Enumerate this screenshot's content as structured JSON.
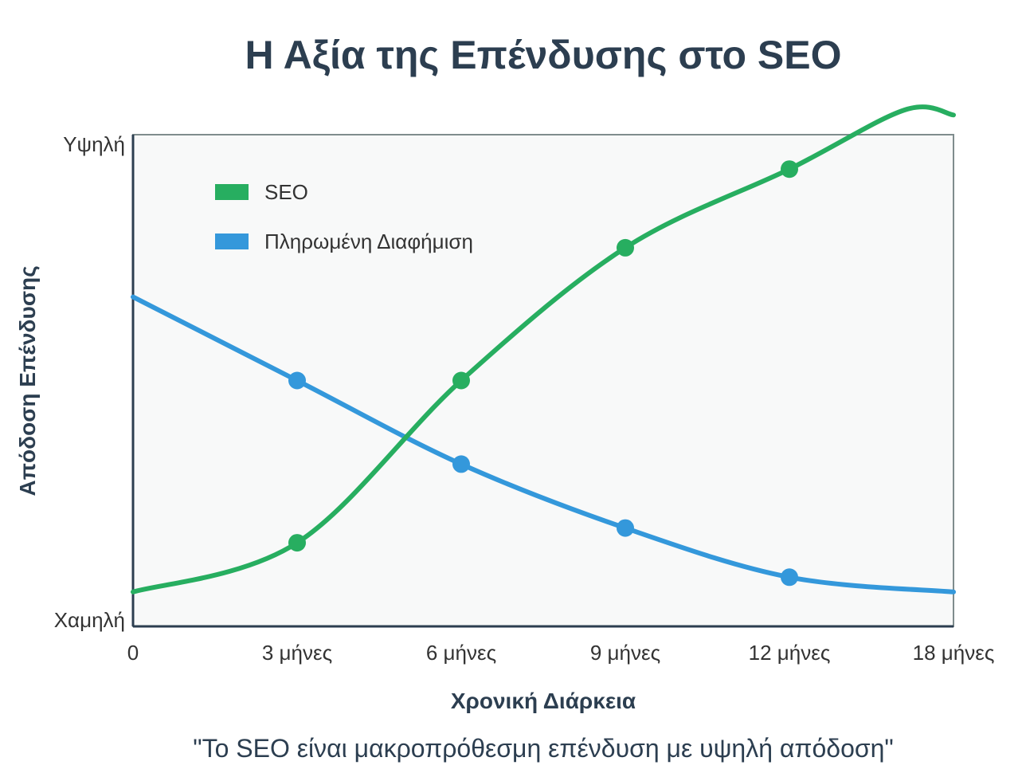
{
  "chart_data": {
    "type": "line",
    "title": "Η Αξία της Επένδυσης στο SEO",
    "xlabel": "Χρονική Διάρκεια",
    "ylabel": "Απόδοση Επένδυσης",
    "x_ticks": [
      "0",
      "3 μήνες",
      "6 μήνες",
      "9 μήνες",
      "12 μήνες",
      "18 μήνες"
    ],
    "y_ticks": [
      "Χαμηλή",
      "Υψηλή"
    ],
    "ylim": [
      0,
      100
    ],
    "grid": false,
    "legend_position": "top-left",
    "series": [
      {
        "name": "SEO",
        "color": "#27ae60",
        "curve": [
          [
            0,
            7
          ],
          [
            1,
            17
          ],
          [
            2,
            50
          ],
          [
            3,
            77
          ],
          [
            4,
            93
          ],
          [
            4.7,
            105
          ],
          [
            5,
            104
          ]
        ],
        "markers": [
          [
            1,
            17
          ],
          [
            2,
            50
          ],
          [
            3,
            77
          ],
          [
            4,
            93
          ]
        ]
      },
      {
        "name": "Πληρωμένη Διαφήμιση",
        "color": "#3498db",
        "curve": [
          [
            0,
            67
          ],
          [
            1,
            50
          ],
          [
            2,
            33
          ],
          [
            3,
            20
          ],
          [
            4,
            10
          ],
          [
            5,
            7
          ]
        ],
        "markers": [
          [
            1,
            50
          ],
          [
            2,
            33
          ],
          [
            3,
            20
          ],
          [
            4,
            10
          ]
        ]
      }
    ],
    "plot_background": "#f8f9f9",
    "axis_color": "#2c3e50"
  },
  "caption": "\"Το SEO είναι μακροπρόθεσμη επένδυση με υψηλή απόδοση\""
}
